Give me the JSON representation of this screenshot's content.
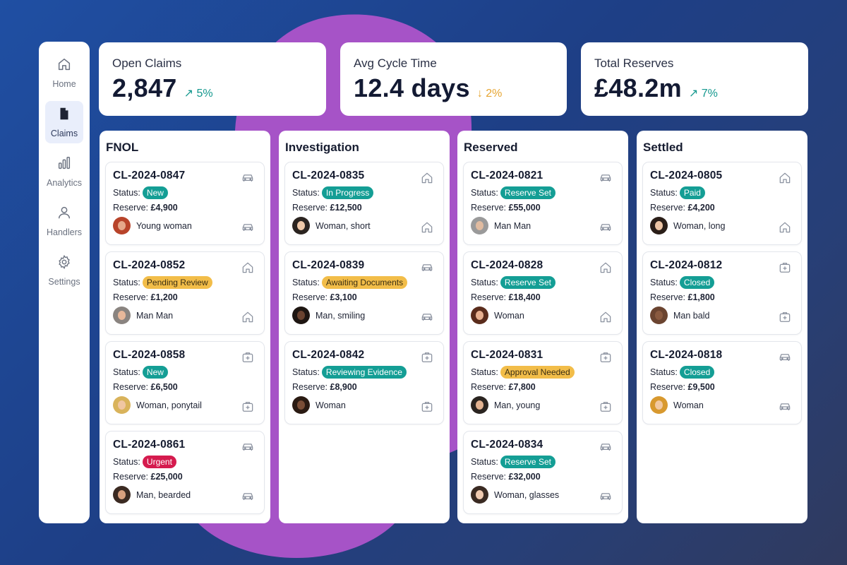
{
  "nav": {
    "items": [
      {
        "label": "Home",
        "icon": "home-icon",
        "active": false
      },
      {
        "label": "Claims",
        "icon": "document-icon",
        "active": true
      },
      {
        "label": "Analytics",
        "icon": "bar-chart-icon",
        "active": false
      },
      {
        "label": "Handlers",
        "icon": "person-icon",
        "active": false
      },
      {
        "label": "Settings",
        "icon": "gear-icon",
        "active": false
      }
    ]
  },
  "kpis": [
    {
      "title": "Open Claims",
      "value": "2,847",
      "change": "↗ 5%",
      "trend": "up"
    },
    {
      "title": "Avg Cycle Time",
      "value": "12.4 days",
      "change": "↓ 2%",
      "trend": "down"
    },
    {
      "title": "Total Reserves",
      "value": "£48.2m",
      "change": "↗ 7%",
      "trend": "up"
    }
  ],
  "status_prefix": "Status:",
  "reserve_prefix": "Reserve:",
  "colors": {
    "teal": "#149e95",
    "amber": "#f2bd49",
    "red": "#d51b4e",
    "purple_blob": "#a653c7"
  },
  "columns": [
    {
      "title": "FNOL",
      "cards": [
        {
          "id": "CL-2024-0847",
          "status": "New",
          "badge": "teal",
          "reserve": "£4,900",
          "handler": "Young woman",
          "type_icon": "car-icon",
          "skin": "#e6a88a",
          "hair": "#b8442a"
        },
        {
          "id": "CL-2024-0852",
          "status": "Pending Review",
          "badge": "amber",
          "reserve": "£1,200",
          "handler": "Man Man",
          "type_icon": "home-icon",
          "skin": "#e8b89a",
          "hair": "#8a8480"
        },
        {
          "id": "CL-2024-0858",
          "status": "New",
          "badge": "teal",
          "reserve": "£6,500",
          "handler": "Woman, ponytail",
          "type_icon": "medical-icon",
          "skin": "#f0c6a2",
          "hair": "#d9b35b"
        },
        {
          "id": "CL-2024-0861",
          "status": "Urgent",
          "badge": "red",
          "reserve": "£25,000",
          "handler": "Man, bearded",
          "type_icon": "car-icon",
          "skin": "#d9a07e",
          "hair": "#3b2a22"
        }
      ]
    },
    {
      "title": "Investigation",
      "cards": [
        {
          "id": "CL-2024-0835",
          "status": "In Progress",
          "badge": "teal",
          "reserve": "£12,500",
          "handler": "Woman, short",
          "type_icon": "home-icon",
          "skin": "#efc8a8",
          "hair": "#2b2420"
        },
        {
          "id": "CL-2024-0839",
          "status": "Awaiting Documents",
          "badge": "amber",
          "reserve": "£3,100",
          "handler": "Man, smiling",
          "type_icon": "car-icon",
          "skin": "#6b4330",
          "hair": "#1e1612"
        },
        {
          "id": "CL-2024-0842",
          "status": "Reviewing Evidence",
          "badge": "teal",
          "reserve": "£8,900",
          "handler": "Woman",
          "type_icon": "medical-icon",
          "skin": "#7a4d36",
          "hair": "#2a1a12"
        }
      ]
    },
    {
      "title": "Reserved",
      "cards": [
        {
          "id": "CL-2024-0821",
          "status": "Reserve Set",
          "badge": "teal",
          "reserve": "£55,000",
          "handler": "Man Man",
          "type_icon": "car-icon",
          "skin": "#e0bba0",
          "hair": "#9a9a9a"
        },
        {
          "id": "CL-2024-0828",
          "status": "Reserve Set",
          "badge": "teal",
          "reserve": "£18,400",
          "handler": "Woman",
          "type_icon": "home-icon",
          "skin": "#e8b090",
          "hair": "#5a2c1c"
        },
        {
          "id": "CL-2024-0831",
          "status": "Approval Needed",
          "badge": "amber",
          "reserve": "£7,800",
          "handler": "Man, young",
          "type_icon": "medical-icon",
          "skin": "#e2b290",
          "hair": "#2a2420"
        },
        {
          "id": "CL-2024-0834",
          "status": "Reserve Set",
          "badge": "teal",
          "reserve": "£32,000",
          "handler": "Woman, glasses",
          "type_icon": "car-icon",
          "skin": "#f0cab0",
          "hair": "#3a2a22"
        }
      ]
    },
    {
      "title": "Settled",
      "cards": [
        {
          "id": "CL-2024-0805",
          "status": "Paid",
          "badge": "teal",
          "reserve": "£4,200",
          "handler": "Woman, long",
          "type_icon": "home-icon",
          "skin": "#edc4a4",
          "hair": "#2a1e18"
        },
        {
          "id": "CL-2024-0812",
          "status": "Closed",
          "badge": "teal",
          "reserve": "£1,800",
          "handler": "Man bald",
          "type_icon": "medical-icon",
          "skin": "#8a5a40",
          "hair": "#6b4430"
        },
        {
          "id": "CL-2024-0818",
          "status": "Closed",
          "badge": "teal",
          "reserve": "£9,500",
          "handler": "Woman",
          "type_icon": "car-icon",
          "skin": "#f2c8a0",
          "hair": "#d8992f"
        }
      ]
    }
  ]
}
